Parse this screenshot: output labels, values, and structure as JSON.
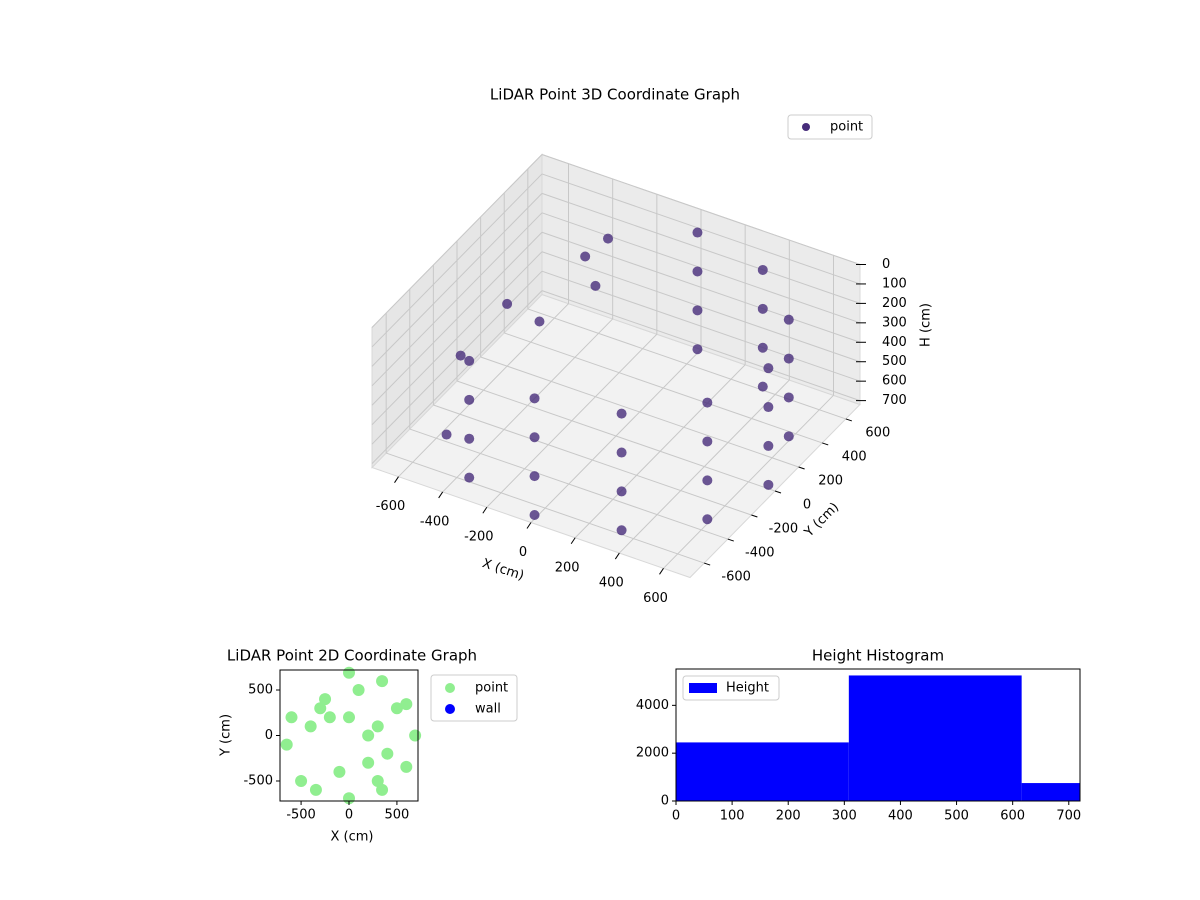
{
  "chart_data": [
    {
      "type": "scatter3d",
      "title": "LiDAR Point 3D Coordinate Graph",
      "xlabel": "X (cm)",
      "ylabel": "Y (cm)",
      "zlabel": "H (cm)",
      "xlim": [
        -720,
        720
      ],
      "ylim": [
        -720,
        720
      ],
      "zlim": [
        720,
        0
      ],
      "xticks": [
        -600,
        -400,
        -200,
        0,
        200,
        400,
        600
      ],
      "yticks": [
        -600,
        -400,
        -200,
        0,
        200,
        400,
        600
      ],
      "zticks": [
        0,
        100,
        200,
        300,
        400,
        500,
        600,
        700
      ],
      "grid": true,
      "legend": "upper right",
      "series": [
        {
          "name": "point",
          "color": "#472d7b",
          "x": [
            -345,
            -345,
            -345,
            -345,
            0,
            0,
            0,
            0,
            345,
            345,
            345,
            345,
            598,
            598,
            598,
            598,
            690,
            690,
            690,
            690,
            598,
            598,
            598,
            598,
            345,
            345,
            345,
            345,
            0,
            0,
            0,
            0,
            -300,
            -200,
            -600,
            -650,
            -500,
            -400,
            -250
          ],
          "y": [
            -598,
            -598,
            -598,
            -598,
            -690,
            -690,
            -690,
            -690,
            -598,
            -598,
            -598,
            -598,
            -345,
            -345,
            -345,
            -345,
            0,
            0,
            0,
            0,
            345,
            345,
            345,
            345,
            598,
            598,
            598,
            598,
            690,
            690,
            690,
            690,
            300,
            200,
            200,
            -100,
            -500,
            100,
            400
          ],
          "h": [
            100,
            300,
            500,
            700,
            100,
            300,
            500,
            700,
            100,
            300,
            500,
            700,
            100,
            300,
            500,
            700,
            100,
            300,
            500,
            700,
            100,
            300,
            500,
            700,
            100,
            300,
            500,
            700,
            100,
            300,
            500,
            700,
            100,
            150,
            400,
            500,
            600,
            350,
            50
          ]
        }
      ]
    },
    {
      "type": "scatter",
      "title": "LiDAR Point 2D Coordinate Graph",
      "xlabel": "X (cm)",
      "ylabel": "Y (cm)",
      "xlim": [
        -720,
        720
      ],
      "ylim": [
        -720,
        720
      ],
      "xticks": [
        -500,
        0,
        500
      ],
      "yticks": [
        -500,
        0,
        500
      ],
      "legend": "outside right",
      "series": [
        {
          "name": "point",
          "color": "#90ee90",
          "x": [
            -345,
            0,
            345,
            598,
            690,
            598,
            345,
            0,
            -300,
            -200,
            -600,
            -650,
            -500,
            -400,
            -250,
            200,
            300,
            100,
            400,
            500,
            200,
            -100,
            0,
            300
          ],
          "y": [
            -598,
            -690,
            -598,
            -345,
            0,
            345,
            598,
            690,
            300,
            200,
            200,
            -100,
            -500,
            100,
            400,
            -300,
            100,
            500,
            -200,
            300,
            0,
            -400,
            200,
            -500
          ]
        },
        {
          "name": "wall",
          "color": "#0000ff",
          "x": [],
          "y": []
        }
      ]
    },
    {
      "type": "histogram",
      "title": "Height Histogram",
      "bins": [
        0,
        308,
        616,
        720
      ],
      "counts": [
        2450,
        5250,
        750
      ],
      "xlim": [
        0,
        720
      ],
      "ylim": [
        0,
        5520
      ],
      "xticks": [
        0,
        100,
        200,
        300,
        400,
        500,
        600,
        700
      ],
      "yticks": [
        0,
        2000,
        4000
      ],
      "legend": "upper left",
      "series": [
        {
          "name": "Height",
          "color": "#0000ff"
        }
      ]
    }
  ]
}
